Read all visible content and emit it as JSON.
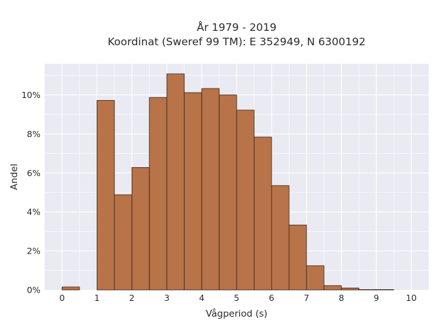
{
  "chart_data": {
    "type": "bar",
    "title": "År 1979 - 2019",
    "subtitle": "Koordinat (Sweref 99 TM): E 352949, N 6300192",
    "xlabel": "Vågperiod (s)",
    "ylabel": "Andel",
    "bin_width": 0.5,
    "bins": [
      {
        "start": 0.0,
        "value": 0.15
      },
      {
        "start": 0.5,
        "value": 0.0
      },
      {
        "start": 1.0,
        "value": 9.72
      },
      {
        "start": 1.5,
        "value": 4.88
      },
      {
        "start": 2.0,
        "value": 6.28
      },
      {
        "start": 2.5,
        "value": 9.87
      },
      {
        "start": 3.0,
        "value": 11.08
      },
      {
        "start": 3.5,
        "value": 10.12
      },
      {
        "start": 4.0,
        "value": 10.33
      },
      {
        "start": 4.5,
        "value": 10.0
      },
      {
        "start": 5.0,
        "value": 9.22
      },
      {
        "start": 5.5,
        "value": 7.84
      },
      {
        "start": 6.0,
        "value": 5.35
      },
      {
        "start": 6.5,
        "value": 3.33
      },
      {
        "start": 7.0,
        "value": 1.24
      },
      {
        "start": 7.5,
        "value": 0.22
      },
      {
        "start": 8.0,
        "value": 0.1
      },
      {
        "start": 8.5,
        "value": 0.02
      },
      {
        "start": 9.0,
        "value": 0.02
      },
      {
        "start": 9.5,
        "value": 0.0
      }
    ],
    "xlim": [
      -0.5,
      10.5
    ],
    "ylim": [
      0,
      11.6
    ],
    "xticks": [
      0,
      1,
      2,
      3,
      4,
      5,
      6,
      7,
      8,
      9,
      10
    ],
    "xtick_labels": [
      "0",
      "1",
      "2",
      "3",
      "4",
      "5",
      "6",
      "7",
      "8",
      "9",
      "10"
    ],
    "yticks": [
      0,
      2,
      4,
      6,
      8,
      10
    ],
    "ytick_labels": [
      "0%",
      "2%",
      "4%",
      "6%",
      "8%",
      "10%"
    ],
    "grid": true,
    "colors": {
      "bar_fill": "#b87349",
      "bar_edge": "#3a2416",
      "plot_bg": "#eaeaf2",
      "grid": "#ffffff"
    }
  }
}
